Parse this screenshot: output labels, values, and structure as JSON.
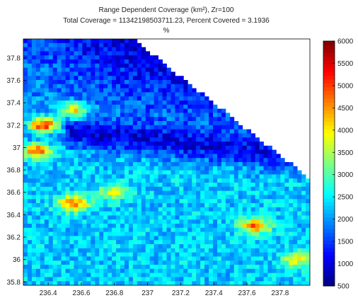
{
  "chart_data": {
    "type": "heatmap",
    "title_line1": "Range Dependent Coverage (km²), Zr=100",
    "title_line2": "Total Coverage = 11342198503711.23, Percent Covered = 3.1936",
    "title_line3": "%",
    "xlabel": "",
    "ylabel": "",
    "xlim": [
      236.25,
      237.98
    ],
    "ylim": [
      35.77,
      37.97
    ],
    "x_ticks": [
      "236.4",
      "236.6",
      "236.8",
      "237",
      "237.2",
      "237.4",
      "237.6",
      "237.8"
    ],
    "y_ticks": [
      "37.8",
      "37.6",
      "37.4",
      "37.2",
      "37",
      "36.8",
      "36.6",
      "36.4",
      "36.2",
      "36",
      "35.8"
    ],
    "colorbar": {
      "range": [
        500,
        6000
      ],
      "ticks": [
        "6000",
        "5500",
        "5000",
        "4500",
        "4000",
        "3500",
        "3000",
        "2500",
        "2000",
        "1500",
        "1000",
        "500"
      ],
      "colormap": "jet"
    },
    "hotspots": [
      {
        "lon": 236.37,
        "lat": 37.2,
        "value": 5600
      },
      {
        "lon": 236.33,
        "lat": 36.97,
        "value": 4800
      },
      {
        "lon": 236.55,
        "lat": 37.33,
        "value": 4400
      },
      {
        "lon": 236.55,
        "lat": 36.5,
        "value": 4700
      },
      {
        "lon": 236.8,
        "lat": 36.6,
        "value": 3800
      },
      {
        "lon": 237.65,
        "lat": 36.3,
        "value": 4600
      },
      {
        "lon": 237.9,
        "lat": 36.0,
        "value": 3800
      }
    ],
    "no_data_region": "upper-right, beyond coastline",
    "grid": false,
    "legend": "none"
  }
}
